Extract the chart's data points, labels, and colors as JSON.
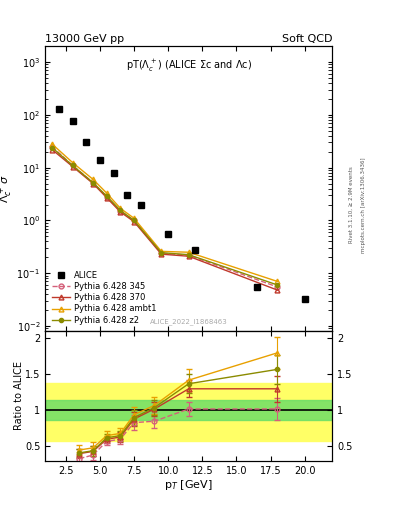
{
  "title_top": "13000 GeV pp",
  "title_top_right": "Soft QCD",
  "plot_title": "pT(Λc⁺) (ALICE Σc and Λc)",
  "ylabel_main": "Λc⁺ σ",
  "ylabel_ratio": "Ratio to ALICE",
  "xlabel": "p$_T$ [GeV]",
  "right_label1": "Rivet 3.1.10, ≥ 2.9M events",
  "right_label2": "mcplots.cern.ch [arXiv:1306.3436]",
  "watermark": "ALICE_2022_I1868463",
  "alice_x": [
    2.0,
    3.0,
    4.0,
    5.0,
    6.0,
    7.0,
    8.0,
    10.0,
    12.0,
    16.5,
    20.0
  ],
  "alice_y": [
    130.0,
    75.0,
    30.0,
    14.0,
    8.0,
    3.0,
    2.0,
    0.55,
    0.28,
    0.055,
    0.033
  ],
  "py345_x": [
    1.5,
    3.0,
    4.5,
    5.5,
    6.5,
    7.5,
    9.5,
    11.5,
    18.0
  ],
  "py345_y": [
    25.0,
    11.0,
    5.2,
    2.8,
    1.5,
    1.0,
    0.24,
    0.22,
    0.055
  ],
  "py370_x": [
    1.5,
    3.0,
    4.5,
    5.5,
    6.5,
    7.5,
    9.5,
    11.5,
    18.0
  ],
  "py370_y": [
    22.0,
    10.5,
    5.0,
    2.7,
    1.45,
    0.95,
    0.23,
    0.21,
    0.048
  ],
  "pyambt_x": [
    1.5,
    3.0,
    4.5,
    5.5,
    6.5,
    7.5,
    9.5,
    11.5,
    18.0
  ],
  "pyambt_y": [
    28.0,
    12.5,
    6.0,
    3.3,
    1.7,
    1.1,
    0.26,
    0.25,
    0.07
  ],
  "pyz2_x": [
    1.5,
    3.0,
    4.5,
    5.5,
    6.5,
    7.5,
    9.5,
    11.5,
    18.0
  ],
  "pyz2_y": [
    24.0,
    11.0,
    5.2,
    2.9,
    1.55,
    1.0,
    0.245,
    0.225,
    0.06
  ],
  "ratio_345_x": [
    3.5,
    4.5,
    5.5,
    6.5,
    7.5,
    9.0,
    11.5,
    18.0
  ],
  "ratio_345_y": [
    0.33,
    0.38,
    0.57,
    0.6,
    0.83,
    0.85,
    1.02,
    1.02
  ],
  "ratio_345_yerr": [
    0.06,
    0.07,
    0.05,
    0.07,
    0.1,
    0.1,
    0.1,
    0.15
  ],
  "ratio_370_x": [
    3.5,
    4.5,
    5.5,
    6.5,
    7.5,
    9.0,
    11.5,
    18.0
  ],
  "ratio_370_y": [
    0.4,
    0.43,
    0.6,
    0.63,
    0.88,
    1.02,
    1.3,
    1.3
  ],
  "ratio_370_yerr": [
    0.06,
    0.07,
    0.05,
    0.07,
    0.1,
    0.1,
    0.12,
    0.18
  ],
  "ratio_ambt_x": [
    3.5,
    4.5,
    5.5,
    6.5,
    7.5,
    9.0,
    11.5,
    18.0
  ],
  "ratio_ambt_y": [
    0.45,
    0.48,
    0.65,
    0.68,
    0.94,
    1.07,
    1.42,
    1.8
  ],
  "ratio_ambt_yerr": [
    0.07,
    0.08,
    0.06,
    0.08,
    0.11,
    0.12,
    0.15,
    0.22
  ],
  "ratio_z2_x": [
    3.5,
    4.5,
    5.5,
    6.5,
    7.5,
    9.0,
    11.5,
    18.0
  ],
  "ratio_z2_y": [
    0.41,
    0.44,
    0.62,
    0.65,
    0.9,
    1.04,
    1.37,
    1.57
  ],
  "ratio_z2_yerr": [
    0.06,
    0.07,
    0.05,
    0.07,
    0.1,
    0.1,
    0.13,
    0.2
  ],
  "color_345": "#d4607a",
  "color_370": "#c0392b",
  "color_ambt": "#e8a000",
  "color_z2": "#8b8b00",
  "color_alice": "#000000",
  "band_green_lo": 0.86,
  "band_green_hi": 1.14,
  "band_yellow_lo": 0.58,
  "band_yellow_hi": 1.38,
  "xlim": [
    1,
    22
  ],
  "ylim_main": [
    0.008,
    2000
  ],
  "ylim_ratio": [
    0.3,
    2.1
  ]
}
